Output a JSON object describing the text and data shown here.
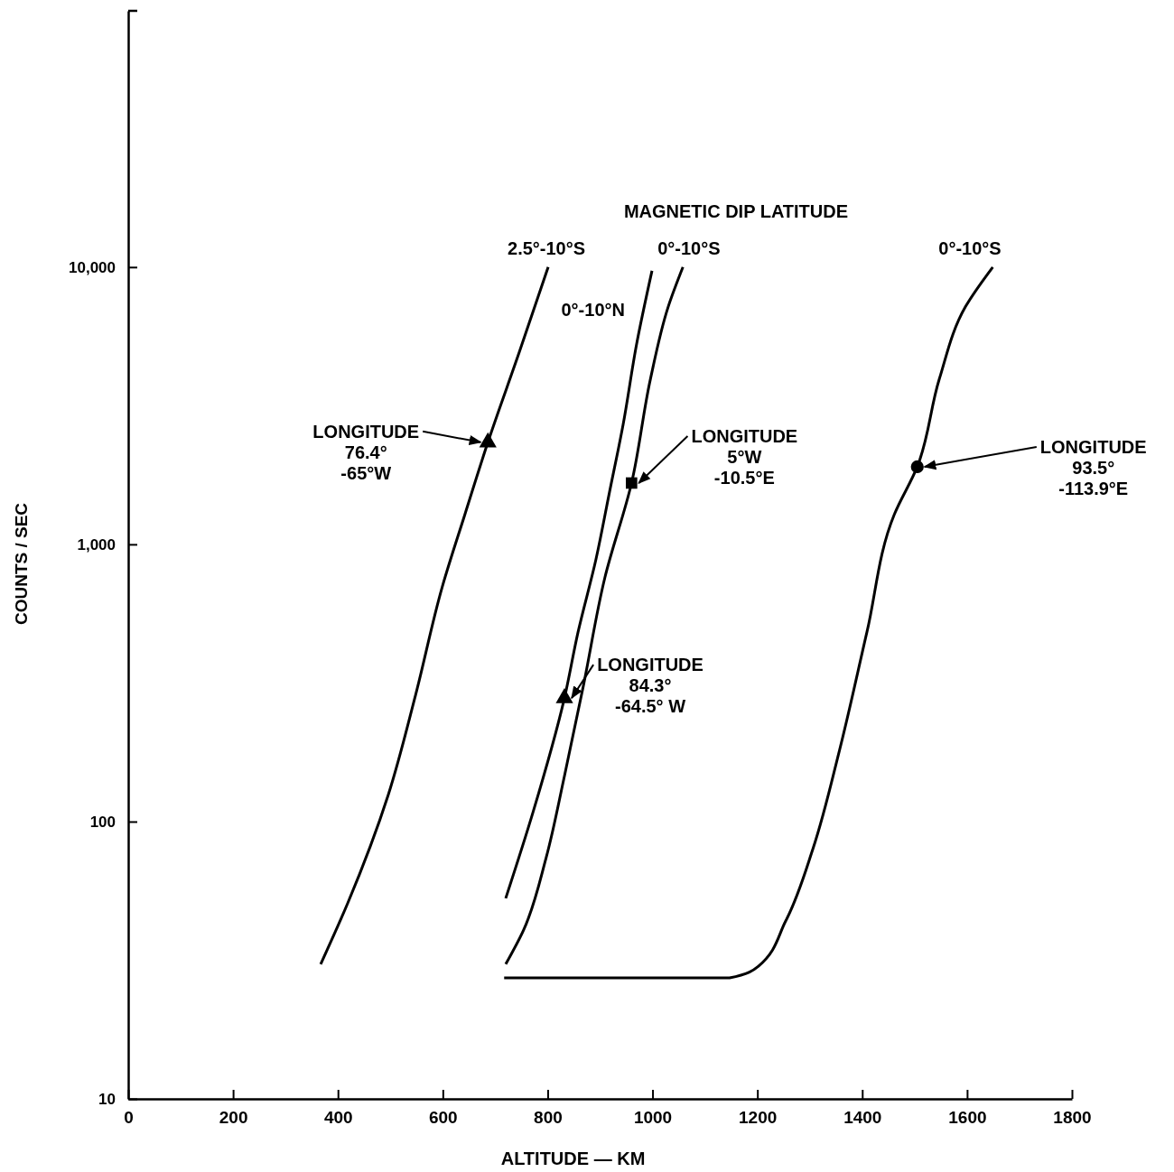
{
  "chart_data": {
    "type": "line",
    "xlabel": "ALTITUDE —  KM",
    "ylabel": "COUNTS / SEC",
    "legend_title": "MAGNETIC DIP LATITUDE",
    "log": "y",
    "xlim": [
      0,
      1800
    ],
    "ylim": [
      10,
      84000
    ],
    "xticks": [
      0,
      200,
      400,
      600,
      800,
      1000,
      1200,
      1400,
      1600,
      1800
    ],
    "yticks": [
      10,
      100,
      {
        "value": 1000,
        "label": "1,000"
      },
      {
        "value": 10000,
        "label": "10,000"
      }
    ],
    "series": [
      {
        "name": "2.5°-10°S",
        "color": "#000000",
        "x": [
          367,
          419,
          496,
          548,
          599,
          642,
          686,
          746,
          801
        ],
        "values": [
          30.6,
          51,
          125,
          286,
          703,
          1280,
          2334,
          4940,
          10000
        ]
      },
      {
        "name": "0°-10°N",
        "color": "#000000",
        "x": [
          720,
          772,
          832,
          858,
          892,
          918,
          944,
          970,
          999
        ],
        "values": [
          52.9,
          108,
          279,
          483,
          881,
          1545,
          2710,
          5320,
          9700
        ]
      },
      {
        "name": "0°-10°S",
        "color": "#000000",
        "x": [
          720,
          754,
          797,
          832,
          868,
          909,
          960,
          996,
          1030,
          1058
        ],
        "values": [
          30.6,
          40.6,
          74,
          146,
          308,
          757,
          1664,
          3946,
          7200,
          10000
        ]
      },
      {
        "name": "0°-10°S",
        "color": "#000000",
        "x": [
          717,
          1147,
          1202,
          1254,
          1306,
          1357,
          1409,
          1461,
          1505,
          1547,
          1597,
          1649
        ],
        "values": [
          27.3,
          27.3,
          30.1,
          43.8,
          79.8,
          182,
          483,
          1280,
          1905,
          3946,
          7200,
          10000
        ]
      },
      {
        "type": "scatter",
        "marker": "triangle",
        "color": "#000000",
        "x": [
          686
        ],
        "values": [
          2334
        ]
      },
      {
        "type": "scatter",
        "marker": "triangle",
        "color": "#000000",
        "x": [
          832
        ],
        "values": [
          279
        ]
      },
      {
        "type": "scatter",
        "marker": "square",
        "color": "#000000",
        "x": [
          960
        ],
        "values": [
          1664
        ]
      },
      {
        "type": "scatter",
        "marker": "circle",
        "color": "#000000",
        "x": [
          1505
        ],
        "values": [
          1905
        ]
      }
    ],
    "annotations": [
      {
        "text": "LONGITUDE\n76.4°\n-65°W",
        "x": 686,
        "y": 2334
      },
      {
        "text": "LONGITUDE\n84.3°\n-64.5° W",
        "x": 832,
        "y": 279
      },
      {
        "text": "LONGITUDE\n5°W\n-10.5°E",
        "x": 960,
        "y": 1664
      },
      {
        "text": "LONGITUDE\n93.5°\n-113.9°E",
        "x": 1505,
        "y": 1905
      }
    ]
  }
}
